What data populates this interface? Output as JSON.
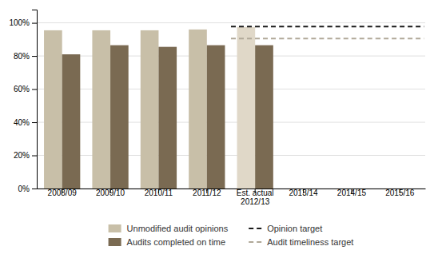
{
  "chart_data": {
    "type": "bar",
    "categories": [
      "2008/09",
      "2009/10",
      "2010/11",
      "2011/12",
      "Est. actual\n2012/13",
      "2013/14",
      "2014/15",
      "2015/16"
    ],
    "series": [
      {
        "name": "Unmodified audit opinions",
        "type": "bar",
        "color": "#C8BFA8",
        "colors": [
          "#C8BFA8",
          "#C8BFA8",
          "#C8BFA8",
          "#C8BFA8",
          "#E0D8C8",
          null,
          null,
          null
        ],
        "values": [
          0.955,
          0.955,
          0.955,
          0.96,
          0.975,
          null,
          null,
          null
        ]
      },
      {
        "name": "Audits completed on time",
        "type": "bar",
        "color": "#7A6A52",
        "values": [
          0.81,
          0.865,
          0.855,
          0.865,
          0.865,
          null,
          null,
          null
        ]
      },
      {
        "name": "Opinion target",
        "type": "line",
        "line_style": "dashed",
        "color": "#1a1a1a",
        "values": [
          null,
          null,
          null,
          null,
          0.978,
          0.978,
          0.978,
          0.978
        ]
      },
      {
        "name": "Audit timeliness target",
        "type": "line",
        "line_style": "dashed",
        "color": "#B0A898",
        "values": [
          null,
          null,
          null,
          null,
          0.905,
          0.905,
          0.905,
          0.905
        ]
      }
    ],
    "ylim": [
      0,
      1.08
    ],
    "yticks": [
      {
        "value": 0,
        "label": "0%"
      },
      {
        "value": 0.2,
        "label": "20%"
      },
      {
        "value": 0.4,
        "label": "40%"
      },
      {
        "value": 0.6,
        "label": "60%"
      },
      {
        "value": 0.8,
        "label": "80%"
      },
      {
        "value": 1.0,
        "label": "100%"
      }
    ],
    "grid": true,
    "legend": "bottom"
  }
}
